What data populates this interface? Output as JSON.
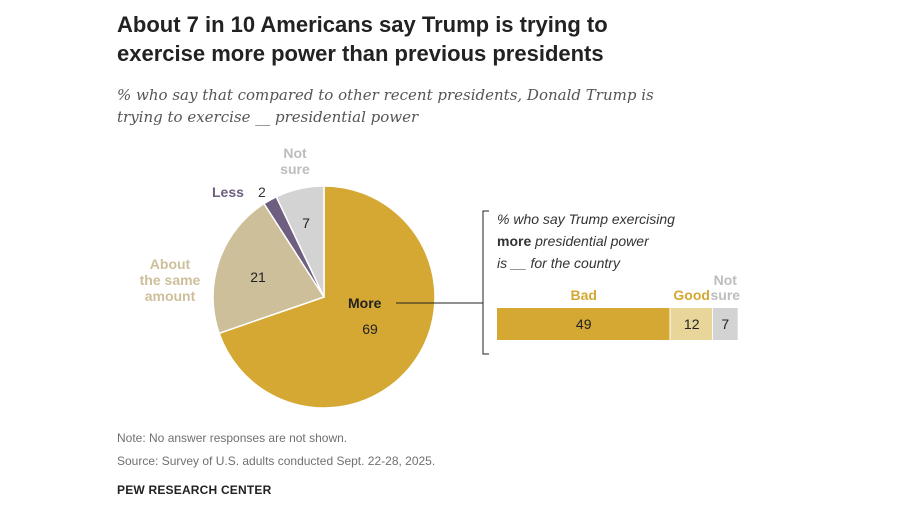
{
  "title_line1": "About 7 in 10 Americans say Trump is trying to",
  "title_line2": "exercise more power than previous presidents",
  "subtitle_line1": "% who say that compared to other recent presidents, Donald Trump is",
  "subtitle_line2": "trying to exercise __ presidential power",
  "colors": {
    "more": "#D4A832",
    "same": "#CDBF9A",
    "less": "#6E5E80",
    "not_sure": "#D3D3D3",
    "bad": "#D4A832",
    "good": "#E7D59A"
  },
  "chart_data": [
    {
      "type": "pie",
      "title": "% who say that compared to other recent presidents, Donald Trump is trying to exercise __ presidential power",
      "slices": [
        {
          "label": "More",
          "value": 69
        },
        {
          "label": "About the same amount",
          "value": 21,
          "label_lines": [
            "About",
            "the same",
            "amount"
          ]
        },
        {
          "label": "Less",
          "value": 2
        },
        {
          "label": "Not sure",
          "value": 7,
          "label_lines": [
            "Not",
            "sure"
          ]
        }
      ]
    },
    {
      "type": "bar",
      "orientation": "horizontal-stacked",
      "title_lines": [
        "% who say Trump exercising",
        "more presidential power",
        "is __ for the country"
      ],
      "title_bold_word": "more",
      "categories": [
        "Bad",
        "Good",
        "Not sure"
      ],
      "category_label_lines": [
        [
          "Bad"
        ],
        [
          "Good"
        ],
        [
          "Not",
          "sure"
        ]
      ],
      "values": [
        49,
        12,
        7
      ]
    }
  ],
  "note": "Note: No answer responses are not shown.",
  "source": "Source: Survey of U.S. adults conducted Sept. 22-28, 2025.",
  "org": "PEW RESEARCH CENTER"
}
